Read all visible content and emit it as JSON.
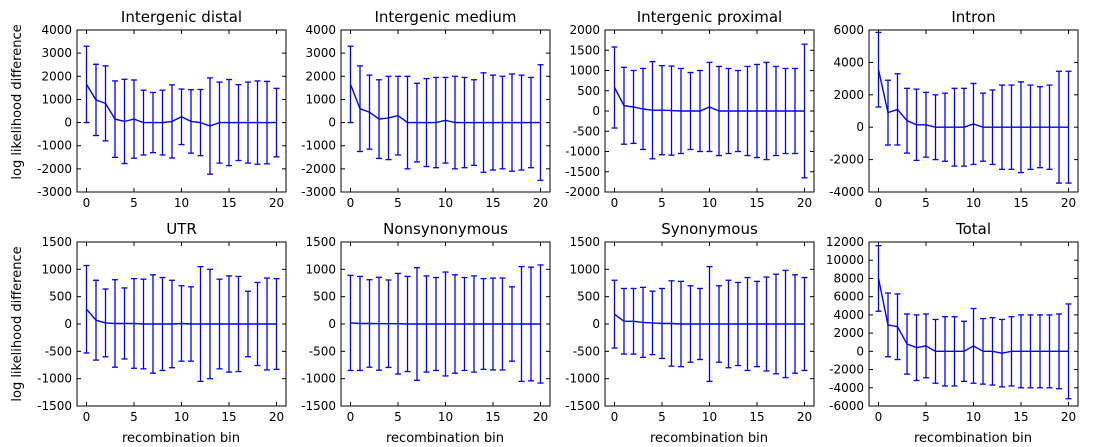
{
  "figure": {
    "ylabel": "log likelihood difference",
    "xlabel": "recombination bin",
    "series_color": "#0000ff"
  },
  "chart_data": [
    {
      "type": "line",
      "title": "Intergenic distal",
      "xlim": [
        -1,
        21
      ],
      "ylim": [
        -3000,
        4000
      ],
      "xticks": [
        0,
        5,
        10,
        15,
        20
      ],
      "yticks": [
        -3000,
        -2000,
        -1000,
        0,
        1000,
        2000,
        3000,
        4000
      ],
      "x": [
        0,
        1,
        2,
        3,
        4,
        5,
        6,
        7,
        8,
        9,
        10,
        11,
        12,
        13,
        14,
        15,
        16,
        17,
        18,
        19,
        20
      ],
      "y": [
        1650,
        980,
        830,
        150,
        50,
        150,
        0,
        0,
        0,
        50,
        250,
        50,
        0,
        -150,
        0,
        0,
        0,
        0,
        0,
        0,
        0
      ],
      "yerr": [
        1650,
        1540,
        1620,
        1650,
        1820,
        1690,
        1400,
        1300,
        1400,
        1580,
        1200,
        1370,
        1430,
        2080,
        1750,
        1860,
        1640,
        1750,
        1800,
        1780,
        1480
      ]
    },
    {
      "type": "line",
      "title": "Intergenic medium",
      "xlim": [
        -1,
        21
      ],
      "ylim": [
        -3000,
        4000
      ],
      "xticks": [
        0,
        5,
        10,
        15,
        20
      ],
      "yticks": [
        -3000,
        -2000,
        -1000,
        0,
        1000,
        2000,
        3000,
        4000
      ],
      "x": [
        0,
        1,
        2,
        3,
        4,
        5,
        6,
        7,
        8,
        9,
        10,
        11,
        12,
        13,
        14,
        15,
        16,
        17,
        18,
        19,
        20
      ],
      "y": [
        1650,
        600,
        450,
        150,
        200,
        300,
        0,
        0,
        0,
        0,
        100,
        0,
        0,
        0,
        0,
        0,
        0,
        0,
        0,
        0,
        0
      ],
      "yerr": [
        1650,
        1850,
        1600,
        1700,
        1800,
        1700,
        2000,
        1700,
        1900,
        1950,
        1850,
        2000,
        1950,
        1850,
        2150,
        2050,
        2000,
        2100,
        2050,
        1950,
        2500
      ]
    },
    {
      "type": "line",
      "title": "Intergenic proximal",
      "xlim": [
        -1,
        21
      ],
      "ylim": [
        -2000,
        2000
      ],
      "xticks": [
        0,
        5,
        10,
        15,
        20
      ],
      "yticks": [
        -2000,
        -1500,
        -1000,
        -500,
        0,
        500,
        1000,
        1500,
        2000
      ],
      "x": [
        0,
        1,
        2,
        3,
        4,
        5,
        6,
        7,
        8,
        9,
        10,
        11,
        12,
        13,
        14,
        15,
        16,
        17,
        18,
        19,
        20
      ],
      "y": [
        580,
        130,
        100,
        50,
        20,
        20,
        10,
        0,
        0,
        0,
        100,
        0,
        0,
        0,
        0,
        0,
        0,
        0,
        0,
        0,
        0
      ],
      "yerr": [
        1000,
        950,
        900,
        1000,
        1200,
        1100,
        1100,
        1050,
        950,
        1000,
        1100,
        1100,
        1050,
        1000,
        1100,
        1150,
        1200,
        1100,
        1050,
        1050,
        1650
      ]
    },
    {
      "type": "line",
      "title": "Intron",
      "xlim": [
        -1,
        21
      ],
      "ylim": [
        -4000,
        6000
      ],
      "xticks": [
        0,
        5,
        10,
        15,
        20
      ],
      "yticks": [
        -4000,
        -2000,
        0,
        2000,
        4000,
        6000
      ],
      "x": [
        0,
        1,
        2,
        3,
        4,
        5,
        6,
        7,
        8,
        9,
        10,
        11,
        12,
        13,
        14,
        15,
        16,
        17,
        18,
        19,
        20
      ],
      "y": [
        3550,
        900,
        1100,
        400,
        150,
        150,
        0,
        0,
        0,
        0,
        200,
        0,
        0,
        0,
        0,
        0,
        0,
        0,
        0,
        0,
        0
      ],
      "yerr": [
        2300,
        2000,
        2200,
        2000,
        2200,
        2000,
        2000,
        2100,
        2400,
        2400,
        2500,
        2100,
        2300,
        2600,
        2600,
        2800,
        2600,
        2500,
        2600,
        3450,
        3450
      ]
    },
    {
      "type": "line",
      "title": "UTR",
      "xlim": [
        -1,
        21
      ],
      "ylim": [
        -1500,
        1500
      ],
      "xticks": [
        0,
        5,
        10,
        15,
        20
      ],
      "yticks": [
        -1500,
        -1000,
        -500,
        0,
        500,
        1000,
        1500
      ],
      "x": [
        0,
        1,
        2,
        3,
        4,
        5,
        6,
        7,
        8,
        9,
        10,
        11,
        12,
        13,
        14,
        15,
        16,
        17,
        18,
        19,
        20
      ],
      "y": [
        270,
        70,
        20,
        10,
        10,
        10,
        0,
        0,
        0,
        0,
        10,
        0,
        0,
        0,
        0,
        0,
        0,
        0,
        0,
        0,
        0
      ],
      "yerr": [
        800,
        730,
        620,
        800,
        650,
        820,
        820,
        900,
        850,
        800,
        690,
        680,
        1050,
        1000,
        820,
        880,
        870,
        600,
        760,
        840,
        830
      ]
    },
    {
      "type": "line",
      "title": "Nonsynonymous",
      "xlim": [
        -1,
        21
      ],
      "ylim": [
        -1500,
        1500
      ],
      "xticks": [
        0,
        5,
        10,
        15,
        20
      ],
      "yticks": [
        -1500,
        -1000,
        -500,
        0,
        500,
        1000,
        1500
      ],
      "x": [
        0,
        1,
        2,
        3,
        4,
        5,
        6,
        7,
        8,
        9,
        10,
        11,
        12,
        13,
        14,
        15,
        16,
        17,
        18,
        19,
        20
      ],
      "y": [
        20,
        10,
        10,
        5,
        5,
        5,
        0,
        0,
        0,
        0,
        0,
        0,
        0,
        0,
        0,
        0,
        0,
        0,
        0,
        0,
        0
      ],
      "yerr": [
        870,
        860,
        800,
        850,
        800,
        920,
        870,
        1030,
        880,
        850,
        950,
        900,
        850,
        880,
        830,
        840,
        840,
        680,
        1050,
        1040,
        1080
      ]
    },
    {
      "type": "line",
      "title": "Synonymous",
      "xlim": [
        -1,
        21
      ],
      "ylim": [
        -1500,
        1500
      ],
      "xticks": [
        0,
        5,
        10,
        15,
        20
      ],
      "yticks": [
        -1500,
        -1000,
        -500,
        0,
        500,
        1000,
        1500
      ],
      "x": [
        0,
        1,
        2,
        3,
        4,
        5,
        6,
        7,
        8,
        9,
        10,
        11,
        12,
        13,
        14,
        15,
        16,
        17,
        18,
        19,
        20
      ],
      "y": [
        180,
        50,
        50,
        30,
        20,
        10,
        10,
        0,
        0,
        0,
        0,
        0,
        0,
        0,
        0,
        0,
        0,
        0,
        0,
        0,
        0
      ],
      "yerr": [
        620,
        600,
        600,
        640,
        580,
        640,
        780,
        780,
        700,
        650,
        1050,
        700,
        800,
        760,
        850,
        780,
        860,
        910,
        980,
        900,
        850
      ]
    },
    {
      "type": "line",
      "title": "Total",
      "xlim": [
        -1,
        21
      ],
      "ylim": [
        -6000,
        12000
      ],
      "xticks": [
        0,
        5,
        10,
        15,
        20
      ],
      "yticks": [
        -6000,
        -4000,
        -2000,
        0,
        2000,
        4000,
        6000,
        8000,
        10000,
        12000
      ],
      "x": [
        0,
        1,
        2,
        3,
        4,
        5,
        6,
        7,
        8,
        9,
        10,
        11,
        12,
        13,
        14,
        15,
        16,
        17,
        18,
        19,
        20
      ],
      "y": [
        8000,
        2900,
        2700,
        800,
        400,
        600,
        0,
        0,
        0,
        0,
        600,
        0,
        0,
        -200,
        0,
        0,
        0,
        0,
        0,
        0,
        0
      ],
      "yerr": [
        3600,
        3500,
        3600,
        3300,
        3600,
        3500,
        3500,
        3800,
        3800,
        3300,
        4100,
        3600,
        3700,
        3700,
        3800,
        4000,
        4000,
        4000,
        4000,
        4100,
        5200
      ]
    }
  ]
}
